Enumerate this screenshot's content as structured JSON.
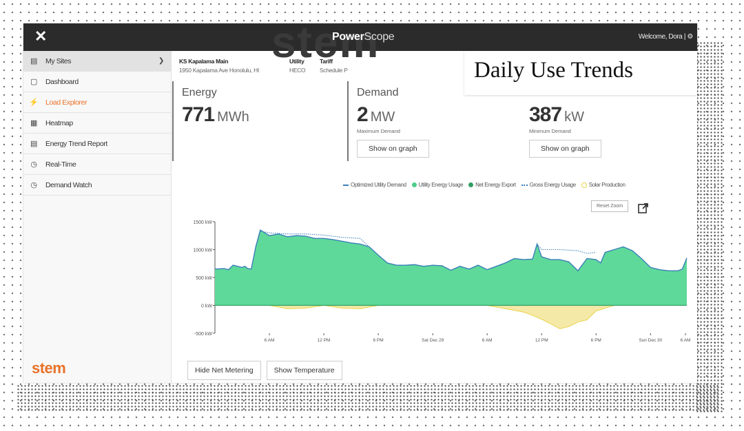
{
  "app": {
    "brand_bold": "Power",
    "brand_light": "Scope",
    "watermark": "stem",
    "welcome": "Welcome, Dora |"
  },
  "sidebar": {
    "items": [
      {
        "label": "My Sites",
        "icon": "sites-icon"
      },
      {
        "label": "Dashboard",
        "icon": "dashboard-icon"
      },
      {
        "label": "Load Explorer",
        "icon": "load-explorer-icon"
      },
      {
        "label": "Heatmap",
        "icon": "heatmap-icon"
      },
      {
        "label": "Energy Trend Report",
        "icon": "report-icon"
      },
      {
        "label": "Real-Time",
        "icon": "clock-icon"
      },
      {
        "label": "Demand Watch",
        "icon": "clock-icon"
      }
    ],
    "active": "Load Explorer",
    "logo": "stem"
  },
  "site": {
    "name_header": "KS Kapalama Main",
    "address": "1950 Kapalama Ave Honolulu, HI",
    "utility_header": "Utility",
    "utility": "HECO",
    "tariff_header": "Tariff",
    "tariff": "Schedule P"
  },
  "stats": {
    "energy": {
      "label": "Energy",
      "value": "771",
      "unit": "MWh"
    },
    "demand": {
      "label": "Demand",
      "value": "2",
      "unit": "MW",
      "sub": "Maximum Demand",
      "button": "Show on graph"
    },
    "min_demand": {
      "value": "387",
      "unit": "kW",
      "sub": "Minimum Demand",
      "button": "Show on graph"
    }
  },
  "overlay_title": "Daily Use Trends",
  "legend": [
    {
      "label": "Optimized Utility Demand",
      "style": "line",
      "color": "#3a7fb8"
    },
    {
      "label": "Utility Energy Usage",
      "style": "dot",
      "color": "#4ccc88"
    },
    {
      "label": "Net Energy Export",
      "style": "dot",
      "color": "#2f9e62"
    },
    {
      "label": "Gross Energy Usage",
      "style": "dotted",
      "color": "#3a7fb8"
    },
    {
      "label": "Solar Production",
      "style": "ring",
      "color": "#e8d44a"
    }
  ],
  "controls": {
    "reset_zoom": "Reset Zoom",
    "hide_net_metering": "Hide Net Metering",
    "show_temperature": "Show Temperature"
  },
  "colors": {
    "accent": "#e8722a",
    "topbar": "#2b2b2b",
    "usage_fill": "#5fd99a",
    "solar_fill": "#f5e9a8"
  },
  "chart_data": {
    "type": "area",
    "ylim": [
      -500,
      1500
    ],
    "yticks": [
      1500,
      1000,
      500,
      0,
      -500
    ],
    "ytick_labels": [
      "1500 kW",
      "1000 kW",
      "500 kW",
      "0 kW",
      "-500 kW"
    ],
    "xlim": [
      0,
      52
    ],
    "xticks": [
      6,
      12,
      18,
      24,
      30,
      36,
      42,
      48,
      54
    ],
    "xtick_labels": [
      "6 AM",
      "12 PM",
      "6 PM",
      "Sat Dec 29",
      "6 AM",
      "12 PM",
      "6 PM",
      "Sun Dec 30",
      "6 AM"
    ],
    "x_unit": "hours from Dec 28 00:00 (approx.)",
    "series": [
      {
        "name": "Utility Energy Usage",
        "x": [
          0,
          1,
          1.5,
          2,
          2.5,
          3,
          3.3,
          3.6,
          4,
          4.5,
          5,
          5.5,
          6,
          7,
          8,
          9,
          10,
          11,
          12,
          13,
          14,
          15,
          16,
          17,
          18,
          19,
          20,
          21,
          22,
          23,
          24,
          25,
          26,
          27,
          28,
          29,
          30,
          31,
          32,
          33,
          34,
          35,
          35.5,
          36,
          37,
          38,
          39,
          40,
          41,
          42,
          42.5,
          43,
          44,
          45,
          46,
          47,
          48,
          49,
          50,
          51,
          51.5,
          52
        ],
        "y": [
          650,
          660,
          640,
          720,
          700,
          680,
          700,
          660,
          650,
          1050,
          1350,
          1300,
          1250,
          1280,
          1230,
          1250,
          1240,
          1200,
          1200,
          1180,
          1150,
          1120,
          1100,
          1050,
          900,
          760,
          720,
          720,
          730,
          700,
          720,
          710,
          630,
          700,
          650,
          720,
          640,
          700,
          760,
          840,
          820,
          830,
          1100,
          870,
          820,
          820,
          780,
          620,
          840,
          820,
          760,
          950,
          1000,
          1050,
          980,
          840,
          680,
          640,
          620,
          620,
          650,
          850
        ]
      },
      {
        "name": "Solar Production",
        "x": [
          6,
          8,
          10,
          12,
          14,
          16,
          18,
          30,
          32,
          34,
          35,
          36,
          37,
          38,
          39,
          40,
          41,
          42,
          44
        ],
        "y": [
          0,
          -60,
          -50,
          0,
          -50,
          -60,
          0,
          0,
          -60,
          -120,
          -180,
          -250,
          -330,
          -420,
          -380,
          -300,
          -260,
          -100,
          0
        ]
      },
      {
        "name": "Gross Energy Usage",
        "x": [
          4.5,
          5,
          6,
          8,
          10,
          12,
          14,
          16,
          17,
          35.5,
          36,
          38,
          40,
          41,
          42
        ],
        "y": [
          1050,
          1330,
          1300,
          1280,
          1280,
          1260,
          1220,
          1200,
          1050,
          1100,
          1000,
          1000,
          980,
          930,
          950
        ]
      }
    ]
  }
}
